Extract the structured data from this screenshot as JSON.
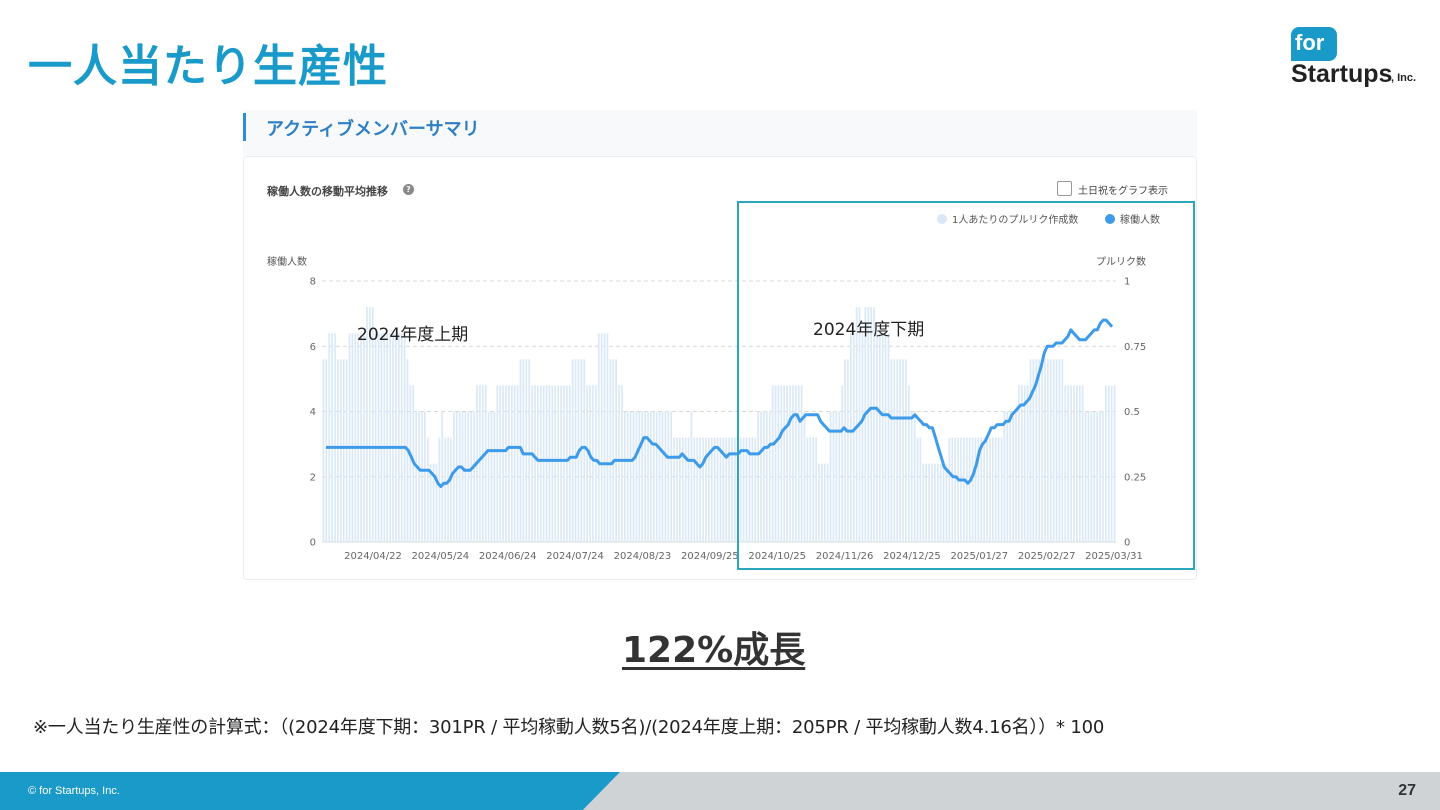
{
  "slide": {
    "title": "一人当たり生産性",
    "logo": {
      "for": "for",
      "startups": "Startups",
      "inc": ", Inc."
    },
    "growth_label": "122%成長",
    "formula": "※一人当たり生産性の計算式：（(2024年度下期：301PR / 平均稼動人数5名)/(2024年度上期：205PR / 平均稼動人数4.16名））* 100",
    "copyright": "© for Startups, Inc.",
    "page_number": "27"
  },
  "panel": {
    "header_title": "アクティブメンバーサマリ",
    "card_title": "稼働人数の移動平均推移",
    "help_icon": "question-icon",
    "checkbox_label": "土日祝をグラフ表示",
    "period_first_half": "2024年度上期",
    "period_second_half": "2024年度下期"
  },
  "colors": {
    "accent": "#1a9ac9",
    "line": "#3d9be9",
    "bar": "#dbe9f7",
    "highlight": "#2aa6bd"
  },
  "chart_data": {
    "type": "bar",
    "legend": {
      "position": "top-right",
      "entries": [
        "1人あたりのプルリク作成数",
        "稼働人数"
      ]
    },
    "left_axis": {
      "label": "稼働人数",
      "range": [
        0,
        8
      ],
      "ticks": [
        "0",
        "2",
        "4",
        "6",
        "8"
      ]
    },
    "right_axis": {
      "label": "プルリク数",
      "range": [
        0,
        1
      ],
      "ticks": [
        "0",
        "0.25",
        "0.5",
        "0.75",
        "1"
      ]
    },
    "x_ticks": [
      "2024/04/22",
      "2024/05/24",
      "2024/06/24",
      "2024/07/24",
      "2024/08/23",
      "2024/09/25",
      "2024/10/25",
      "2024/11/26",
      "2024/12/25",
      "2025/01/27",
      "2025/02/27",
      "2025/03/31"
    ],
    "grid": true,
    "line_series": {
      "name": "稼働人数",
      "values": [
        2.9,
        2.9,
        2.9,
        2.9,
        2.9,
        2.9,
        2.9,
        2.9,
        2.9,
        2.9,
        2.9,
        2.9,
        2.9,
        2.9,
        2.9,
        2.9,
        2.9,
        2.9,
        2.9,
        2.9,
        2.9,
        2.9,
        2.9,
        2.9,
        2.9,
        2.9,
        2.9,
        2.9,
        2.8,
        2.6,
        2.4,
        2.3,
        2.2,
        2.2,
        2.2,
        2.2,
        2.1,
        2.0,
        1.8,
        1.7,
        1.8,
        1.8,
        1.9,
        2.1,
        2.2,
        2.3,
        2.3,
        2.2,
        2.2,
        2.2,
        2.3,
        2.4,
        2.5,
        2.6,
        2.7,
        2.8,
        2.8,
        2.8,
        2.8,
        2.8,
        2.8,
        2.8,
        2.9,
        2.9,
        2.9,
        2.9,
        2.9,
        2.7,
        2.7,
        2.7,
        2.7,
        2.6,
        2.5,
        2.5,
        2.5,
        2.5,
        2.5,
        2.5,
        2.5,
        2.5,
        2.5,
        2.5,
        2.5,
        2.6,
        2.6,
        2.6,
        2.8,
        2.9,
        2.9,
        2.8,
        2.6,
        2.5,
        2.5,
        2.4,
        2.4,
        2.4,
        2.4,
        2.4,
        2.5,
        2.5,
        2.5,
        2.5,
        2.5,
        2.5,
        2.5,
        2.6,
        2.8,
        3.0,
        3.2,
        3.2,
        3.1,
        3.0,
        3.0,
        2.9,
        2.8,
        2.7,
        2.6,
        2.6,
        2.6,
        2.6,
        2.6,
        2.7,
        2.6,
        2.5,
        2.5,
        2.5,
        2.4,
        2.3,
        2.4,
        2.6,
        2.7,
        2.8,
        2.9,
        2.9,
        2.8,
        2.7,
        2.6,
        2.7,
        2.7,
        2.7,
        2.7,
        2.8,
        2.8,
        2.8,
        2.7,
        2.7,
        2.7,
        2.7,
        2.8,
        2.9,
        2.9,
        3.0,
        3.0,
        3.1,
        3.2,
        3.4,
        3.5,
        3.6,
        3.8,
        3.9,
        3.9,
        3.7,
        3.8,
        3.9,
        3.9,
        3.9,
        3.9,
        3.9,
        3.7,
        3.6,
        3.5,
        3.4,
        3.4,
        3.4,
        3.4,
        3.4,
        3.5,
        3.4,
        3.4,
        3.4,
        3.5,
        3.6,
        3.7,
        3.9,
        4.0,
        4.1,
        4.1,
        4.1,
        4.0,
        3.9,
        3.9,
        3.9,
        3.8,
        3.8,
        3.8,
        3.8,
        3.8,
        3.8,
        3.8,
        3.8,
        3.9,
        3.8,
        3.7,
        3.6,
        3.6,
        3.5,
        3.5,
        3.2,
        2.9,
        2.6,
        2.3,
        2.2,
        2.1,
        2.0,
        2.0,
        1.9,
        1.9,
        1.9,
        1.8,
        1.9,
        2.1,
        2.4,
        2.8,
        3.0,
        3.1,
        3.3,
        3.5,
        3.5,
        3.6,
        3.6,
        3.6,
        3.7,
        3.7,
        3.9,
        4.0,
        4.1,
        4.2,
        4.2,
        4.3,
        4.4,
        4.6,
        4.8,
        5.1,
        5.4,
        5.8,
        6.0,
        6.0,
        6.0,
        6.1,
        6.1,
        6.1,
        6.2,
        6.3,
        6.5,
        6.4,
        6.3,
        6.2,
        6.2,
        6.2,
        6.3,
        6.4,
        6.5,
        6.5,
        6.7,
        6.8,
        6.8,
        6.7,
        6.6
      ]
    },
    "bar_series": {
      "name": "1人あたりのプルリク作成数",
      "values": [
        0.7,
        0.7,
        0.8,
        0.8,
        0.8,
        0.7,
        0.7,
        0.7,
        0.7,
        0.8,
        0.8,
        0.8,
        0.8,
        0.8,
        0.8,
        0.9,
        0.9,
        0.9,
        0.8,
        0.8,
        0.8,
        0.8,
        0.8,
        0.8,
        0.8,
        0.8,
        0.8,
        0.8,
        0.8,
        0.7,
        0.6,
        0.6,
        0.5,
        0.5,
        0.5,
        0.5,
        0.4,
        0.3,
        0.3,
        0.3,
        0.4,
        0.5,
        0.4,
        0.4,
        0.4,
        0.5,
        0.5,
        0.5,
        0.5,
        0.5,
        0.5,
        0.5,
        0.5,
        0.6,
        0.6,
        0.6,
        0.6,
        0.5,
        0.5,
        0.5,
        0.6,
        0.6,
        0.6,
        0.6,
        0.6,
        0.6,
        0.6,
        0.6,
        0.7,
        0.7,
        0.7,
        0.7,
        0.6,
        0.6,
        0.6,
        0.6,
        0.6,
        0.6,
        0.6,
        0.6,
        0.6,
        0.6,
        0.6,
        0.6,
        0.6,
        0.6,
        0.7,
        0.7,
        0.7,
        0.7,
        0.7,
        0.6,
        0.6,
        0.6,
        0.6,
        0.8,
        0.8,
        0.8,
        0.8,
        0.7,
        0.7,
        0.7,
        0.6,
        0.6,
        0.5,
        0.5,
        0.5,
        0.5,
        0.5,
        0.5,
        0.5,
        0.5,
        0.5,
        0.5,
        0.5,
        0.5,
        0.5,
        0.5,
        0.5,
        0.5,
        0.5,
        0.4,
        0.4,
        0.4,
        0.4,
        0.4,
        0.4,
        0.5,
        0.4,
        0.4,
        0.4,
        0.4,
        0.4,
        0.4,
        0.4,
        0.4,
        0.4,
        0.4,
        0.4,
        0.4,
        0.4,
        0.4,
        0.4,
        0.4,
        0.4,
        0.4,
        0.4,
        0.4,
        0.4,
        0.4,
        0.5,
        0.5,
        0.5,
        0.5,
        0.5,
        0.6,
        0.6,
        0.6,
        0.6,
        0.6,
        0.6,
        0.6,
        0.6,
        0.6,
        0.6,
        0.6,
        0.5,
        0.4,
        0.4,
        0.4,
        0.4,
        0.3,
        0.3,
        0.3,
        0.3,
        0.5,
        0.5,
        0.5,
        0.5,
        0.6,
        0.7,
        0.7,
        0.8,
        0.8,
        0.9,
        0.9,
        0.8,
        0.9,
        0.9,
        0.9,
        0.9,
        0.8,
        0.8,
        0.8,
        0.8,
        0.8,
        0.7,
        0.7,
        0.7,
        0.7,
        0.7,
        0.7,
        0.6,
        0.5,
        0.5,
        0.4,
        0.4,
        0.3,
        0.3,
        0.3,
        0.3,
        0.3,
        0.3,
        0.3,
        0.3,
        0.3,
        0.4,
        0.4,
        0.4,
        0.4,
        0.4,
        0.4,
        0.4,
        0.4,
        0.4,
        0.4,
        0.4,
        0.4,
        0.4,
        0.4,
        0.4,
        0.4,
        0.4,
        0.4,
        0.4,
        0.5,
        0.5,
        0.5,
        0.5,
        0.5,
        0.6,
        0.6,
        0.6,
        0.6,
        0.7,
        0.7,
        0.7,
        0.7,
        0.7,
        0.7,
        0.7,
        0.7,
        0.7,
        0.7,
        0.7,
        0.7,
        0.6,
        0.6,
        0.6,
        0.6,
        0.6,
        0.6,
        0.6,
        0.5,
        0.5,
        0.5,
        0.5,
        0.5,
        0.5,
        0.5,
        0.6,
        0.6,
        0.6,
        0.6
      ]
    }
  }
}
